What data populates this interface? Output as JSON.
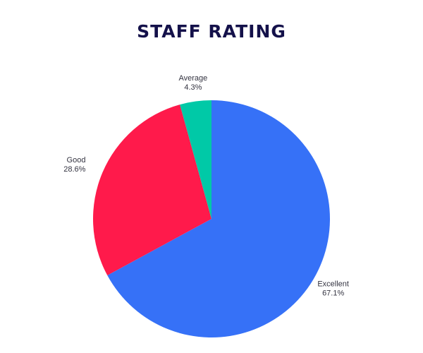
{
  "chart_data": {
    "type": "pie",
    "title": "STAFF RATING",
    "slices": [
      {
        "label": "Excellent",
        "value": 67.1,
        "display": "67.1%",
        "color": "#3671F7"
      },
      {
        "label": "Good",
        "value": 28.6,
        "display": "28.6%",
        "color": "#FF1A4B"
      },
      {
        "label": "Average",
        "value": 4.3,
        "display": "4.3%",
        "color": "#00C9A7"
      }
    ],
    "start_angle": "12 o'clock",
    "direction": "clockwise",
    "legend": "none",
    "label_placement": "outside"
  }
}
